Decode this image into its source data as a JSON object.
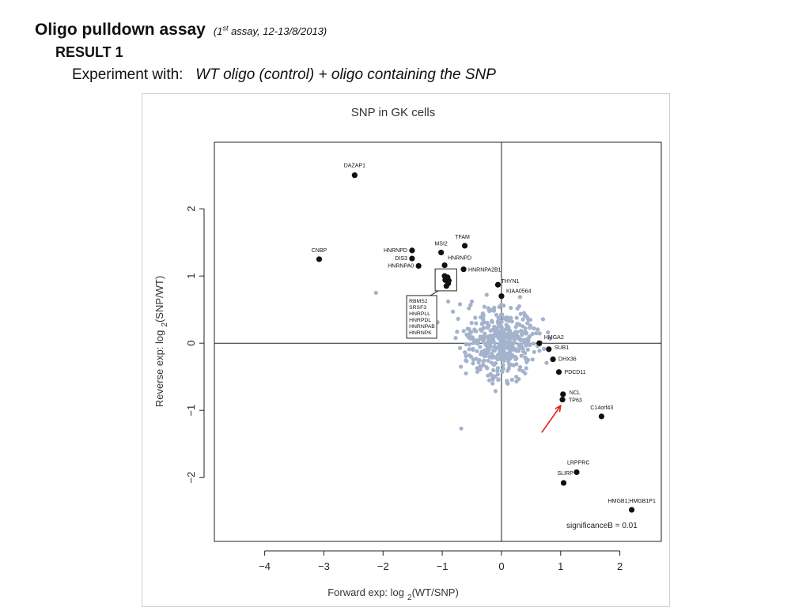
{
  "slide": {
    "title": "Oligo pulldown assay",
    "subtitle_pre": "(1",
    "subtitle_sup": "st",
    "subtitle_post": " assay, 12-13/8/2013)",
    "result": "RESULT  1",
    "experiment_label": "Experiment with:",
    "experiment_detail": "WT oligo (control)  +  oligo containing the SNP"
  },
  "chart_data": {
    "type": "scatter",
    "title": "SNP in GK cells",
    "xlabel_pre": "Forward exp: log",
    "xlabel_sub": "2",
    "xlabel_post": "(WT/SNP)",
    "ylabel_pre": "Reverse exp: log",
    "ylabel_sub": "2",
    "ylabel_post": "(SNP/WT)",
    "xlim": [
      -4.85,
      2.7
    ],
    "ylim": [
      -2.95,
      2.99
    ],
    "xticks": [
      -4,
      -3,
      -2,
      -1,
      0,
      1,
      2
    ],
    "xtick_labels": [
      "−4",
      "−3",
      "−2",
      "−1",
      "0",
      "1",
      "2"
    ],
    "yticks": [
      -2,
      -1,
      0,
      1,
      2
    ],
    "ytick_labels": [
      "−2",
      "−1",
      "0",
      "1",
      "2"
    ],
    "grid": false,
    "reference_lines": {
      "x": 0,
      "y": 0
    },
    "significance_note": "significanceB = 0.01",
    "colors": {
      "significant": "#111111",
      "background": "#a4b3cc",
      "arrow": "#e0241e"
    },
    "labeled_points": [
      {
        "label": "DAZAP1",
        "x": -2.48,
        "y": 2.5
      },
      {
        "label": "CNBP",
        "x": -3.08,
        "y": 1.25
      },
      {
        "label": "HNRNPD",
        "x": -1.51,
        "y": 1.38
      },
      {
        "label": "DIS3",
        "x": -1.51,
        "y": 1.26
      },
      {
        "label": "HNRNPA0",
        "x": -1.4,
        "y": 1.15
      },
      {
        "label": "MSI2",
        "x": -1.02,
        "y": 1.35
      },
      {
        "label": "TFAM",
        "x": -0.62,
        "y": 1.45
      },
      {
        "label": "HNRNPD",
        "x": -0.96,
        "y": 1.16
      },
      {
        "label": "HNRNPA2B1",
        "x": -0.64,
        "y": 1.1
      },
      {
        "label": "THYN1",
        "x": -0.06,
        "y": 0.87
      },
      {
        "label": "KIAA0564",
        "x": 0.0,
        "y": 0.7
      },
      {
        "label": "HMGA2",
        "x": 0.64,
        "y": 0.0
      },
      {
        "label": "SUB1",
        "x": 0.8,
        "y": -0.09
      },
      {
        "label": "DHX36",
        "x": 0.87,
        "y": -0.24
      },
      {
        "label": "PDCD11",
        "x": 0.97,
        "y": -0.43
      },
      {
        "label": "NCL",
        "x": 1.04,
        "y": -0.76
      },
      {
        "label": "TP63",
        "x": 1.03,
        "y": -0.84
      },
      {
        "label": "C14orf43",
        "x": 1.69,
        "y": -1.09
      },
      {
        "label": "LRPPRC",
        "x": 1.27,
        "y": -1.92
      },
      {
        "label": "SLIRP",
        "x": 1.05,
        "y": -2.08
      },
      {
        "label": "HMGB1;HMGB1P1",
        "x": 2.2,
        "y": -2.48
      }
    ],
    "boxed_group": {
      "labels": [
        "RBMS2",
        "SRSF3",
        "HNRPLL",
        "HNRPDL",
        "HNRNPAB",
        "HNRNPK"
      ],
      "points": [
        {
          "x": -0.96,
          "y": 1.0
        },
        {
          "x": -0.91,
          "y": 0.98
        },
        {
          "x": -0.89,
          "y": 0.93
        },
        {
          "x": -0.95,
          "y": 0.94
        },
        {
          "x": -0.9,
          "y": 0.89
        },
        {
          "x": -0.93,
          "y": 0.85
        }
      ]
    },
    "background_outliers": [
      {
        "x": -2.12,
        "y": 0.75
      },
      {
        "x": -1.53,
        "y": 0.55
      },
      {
        "x": -1.33,
        "y": 0.45
      },
      {
        "x": -1.55,
        "y": 0.15
      },
      {
        "x": -1.08,
        "y": 0.31
      },
      {
        "x": -0.75,
        "y": 0.17
      },
      {
        "x": -0.82,
        "y": 0.47
      },
      {
        "x": -0.7,
        "y": 0.58
      },
      {
        "x": -0.5,
        "y": 0.62
      },
      {
        "x": -0.6,
        "y": -0.45
      },
      {
        "x": -0.35,
        "y": -0.35
      },
      {
        "x": -0.55,
        "y": 0.52
      },
      {
        "x": -0.68,
        "y": -1.27
      },
      {
        "x": 0.3,
        "y": 0.55
      },
      {
        "x": 0.45,
        "y": -0.25
      },
      {
        "x": 0.38,
        "y": 0.45
      },
      {
        "x": -0.25,
        "y": 0.72
      },
      {
        "x": 0.25,
        "y": -0.5
      },
      {
        "x": -0.48,
        "y": -0.1
      },
      {
        "x": 0.55,
        "y": 0.22
      },
      {
        "x": 0.4,
        "y": -0.45
      },
      {
        "x": -0.9,
        "y": 0.62
      },
      {
        "x": -0.15,
        "y": -0.6
      }
    ],
    "background_cloud": {
      "center_x": 0.0,
      "center_y": 0.0,
      "spread_x": 0.28,
      "spread_y": 0.24,
      "count": 420
    },
    "arrow": {
      "from_x": 0.68,
      "from_y": -1.33,
      "to_x": 1.0,
      "to_y": -0.93
    }
  }
}
